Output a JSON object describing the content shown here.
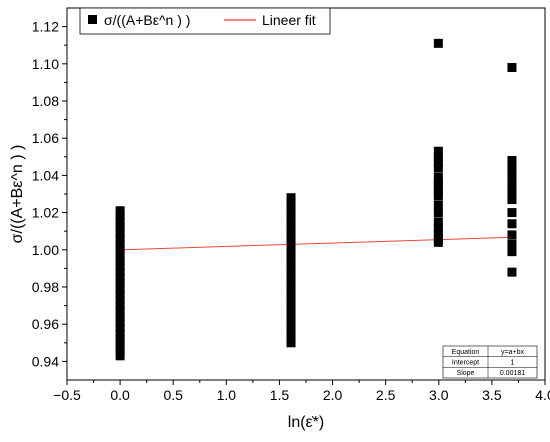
{
  "chart_data": {
    "type": "scatter",
    "xlabel": "ln(ε̇*)",
    "ylabel": "σ/((A+Bε^n ) )",
    "xlim": [
      -0.5,
      4.0
    ],
    "ylim": [
      0.93,
      1.13
    ],
    "x_ticks": [
      -0.5,
      0.0,
      0.5,
      1.0,
      1.5,
      2.0,
      2.5,
      3.0,
      3.5,
      4.0
    ],
    "x_tick_labels": [
      "−0.5",
      "0.0",
      "0.5",
      "1.0",
      "1.5",
      "2.0",
      "2.5",
      "3.0",
      "3.5",
      "4.0"
    ],
    "y_ticks": [
      0.94,
      0.96,
      0.98,
      1.0,
      1.02,
      1.04,
      1.06,
      1.08,
      1.1,
      1.12
    ],
    "y_tick_labels": [
      "0.94",
      "0.96",
      "0.98",
      "1.00",
      "1.02",
      "1.04",
      "1.06",
      "1.08",
      "1.10",
      "1.12"
    ],
    "grid": false,
    "legend_position": "top-left",
    "series": [
      {
        "name": "σ/((A+Bε^n ) )",
        "kind": "scatter",
        "marker": "square",
        "color": "#000000",
        "points": [
          [
            0.0,
            0.943
          ],
          [
            0.0,
            0.946
          ],
          [
            0.0,
            0.949
          ],
          [
            0.0,
            0.952
          ],
          [
            0.0,
            0.955
          ],
          [
            0.0,
            0.958
          ],
          [
            0.0,
            0.961
          ],
          [
            0.0,
            0.964
          ],
          [
            0.0,
            0.967
          ],
          [
            0.0,
            0.97
          ],
          [
            0.0,
            0.973
          ],
          [
            0.0,
            0.976
          ],
          [
            0.0,
            0.979
          ],
          [
            0.0,
            0.982
          ],
          [
            0.0,
            0.985
          ],
          [
            0.0,
            0.988
          ],
          [
            0.0,
            0.991
          ],
          [
            0.0,
            0.994
          ],
          [
            0.0,
            0.997
          ],
          [
            0.0,
            1.0
          ],
          [
            0.0,
            1.003
          ],
          [
            0.0,
            1.006
          ],
          [
            0.0,
            1.009
          ],
          [
            0.0,
            1.012
          ],
          [
            0.0,
            1.015
          ],
          [
            0.0,
            1.018
          ],
          [
            0.0,
            1.021
          ],
          [
            1.609,
            0.95
          ],
          [
            1.609,
            0.953
          ],
          [
            1.609,
            0.956
          ],
          [
            1.609,
            0.959
          ],
          [
            1.609,
            0.962
          ],
          [
            1.609,
            0.965
          ],
          [
            1.609,
            0.968
          ],
          [
            1.609,
            0.971
          ],
          [
            1.609,
            0.974
          ],
          [
            1.609,
            0.977
          ],
          [
            1.609,
            0.98
          ],
          [
            1.609,
            0.983
          ],
          [
            1.609,
            0.986
          ],
          [
            1.609,
            0.989
          ],
          [
            1.609,
            0.992
          ],
          [
            1.609,
            0.995
          ],
          [
            1.609,
            0.998
          ],
          [
            1.609,
            1.001
          ],
          [
            1.609,
            1.004
          ],
          [
            1.609,
            1.007
          ],
          [
            1.609,
            1.01
          ],
          [
            1.609,
            1.013
          ],
          [
            1.609,
            1.016
          ],
          [
            1.609,
            1.019
          ],
          [
            1.609,
            1.022
          ],
          [
            1.609,
            1.025
          ],
          [
            1.609,
            1.028
          ],
          [
            2.996,
            1.111
          ],
          [
            2.996,
            1.053
          ],
          [
            2.996,
            1.05
          ],
          [
            2.996,
            1.047
          ],
          [
            2.996,
            1.044
          ],
          [
            2.996,
            1.039
          ],
          [
            2.996,
            1.036
          ],
          [
            2.996,
            1.034
          ],
          [
            2.996,
            1.031
          ],
          [
            2.996,
            1.029
          ],
          [
            2.996,
            1.024
          ],
          [
            2.996,
            1.02
          ],
          [
            2.996,
            1.015
          ],
          [
            2.996,
            1.012
          ],
          [
            2.996,
            1.009
          ],
          [
            2.996,
            1.006
          ],
          [
            2.996,
            1.004
          ],
          [
            3.689,
            1.098
          ],
          [
            3.689,
            1.048
          ],
          [
            3.689,
            1.045
          ],
          [
            3.689,
            1.042
          ],
          [
            3.689,
            1.039
          ],
          [
            3.689,
            1.036
          ],
          [
            3.689,
            1.033
          ],
          [
            3.689,
            1.03
          ],
          [
            3.689,
            1.027
          ],
          [
            3.689,
            1.02
          ],
          [
            3.689,
            1.014
          ],
          [
            3.689,
            1.008
          ],
          [
            3.689,
            1.003
          ],
          [
            3.689,
            0.999
          ],
          [
            3.689,
            0.988
          ]
        ]
      },
      {
        "name": "Lineer fit",
        "kind": "line",
        "color": "#e8473a",
        "x": [
          0.0,
          3.689
        ],
        "y": [
          1.0,
          1.0067
        ]
      }
    ],
    "fit_table": {
      "rows": [
        [
          "Equation",
          "y=a+bx"
        ],
        [
          "Intercept",
          "1"
        ],
        [
          "Slope",
          "0.00181"
        ]
      ]
    }
  }
}
